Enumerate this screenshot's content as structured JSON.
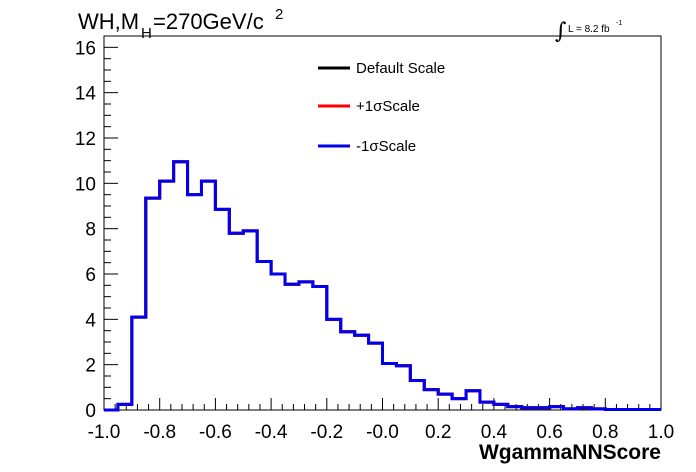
{
  "chart_data": {
    "type": "histogram",
    "title": {
      "main": "WH,M",
      "sub": "H",
      "rest": "=270GeV/c",
      "sup": "2"
    },
    "lumi": {
      "integral": "∫",
      "text": "L = 8.2 fb",
      "sup": "-1"
    },
    "xlabel": "WgammaNNScore",
    "ylabel": "",
    "xlim": [
      -1.0,
      1.0
    ],
    "ylim": [
      0,
      16.5
    ],
    "x_ticks": [
      "-1.0",
      "-0.8",
      "-0.6",
      "-0.4",
      "-0.2",
      "-0.0",
      "0.2",
      "0.4",
      "0.6",
      "0.8",
      "1.0"
    ],
    "y_ticks": [
      "0",
      "2",
      "4",
      "6",
      "8",
      "10",
      "12",
      "14",
      "16"
    ],
    "bin_edges_start": -1.0,
    "bin_width": 0.05,
    "series": [
      {
        "name": "Default Scale",
        "color": "#000000",
        "values": [
          0.0,
          0.25,
          4.1,
          9.35,
          10.1,
          10.95,
          9.5,
          10.1,
          8.85,
          7.8,
          7.9,
          6.55,
          6.0,
          5.55,
          5.65,
          5.45,
          4.0,
          3.45,
          3.3,
          2.95,
          2.05,
          1.95,
          1.3,
          0.9,
          0.7,
          0.5,
          0.85,
          0.35,
          0.25,
          0.15,
          0.1,
          0.1,
          0.15,
          0.05,
          0.1,
          0.05,
          0.02,
          0.02,
          0.02,
          0.02
        ]
      },
      {
        "name": "+1σScale",
        "color": "#ff0000",
        "values": [
          0.0,
          0.25,
          4.1,
          9.35,
          10.1,
          10.95,
          9.5,
          10.1,
          8.85,
          7.8,
          7.9,
          6.55,
          6.0,
          5.55,
          5.65,
          5.45,
          4.0,
          3.45,
          3.3,
          2.95,
          2.05,
          1.95,
          1.3,
          0.9,
          0.7,
          0.5,
          0.85,
          0.35,
          0.25,
          0.15,
          0.1,
          0.1,
          0.15,
          0.05,
          0.1,
          0.05,
          0.02,
          0.02,
          0.02,
          0.02
        ]
      },
      {
        "name": "-1σScale",
        "color": "#0000ee",
        "values": [
          0.0,
          0.25,
          4.1,
          9.35,
          10.1,
          10.95,
          9.5,
          10.1,
          8.85,
          7.8,
          7.9,
          6.55,
          6.0,
          5.55,
          5.65,
          5.45,
          4.0,
          3.45,
          3.3,
          2.95,
          2.05,
          1.95,
          1.3,
          0.9,
          0.7,
          0.5,
          0.85,
          0.35,
          0.25,
          0.15,
          0.1,
          0.1,
          0.15,
          0.05,
          0.1,
          0.05,
          0.02,
          0.02,
          0.02,
          0.02
        ]
      }
    ],
    "legend": {
      "placement": "top-center",
      "entries": [
        "Default Scale",
        "+1σScale",
        "-1σScale"
      ]
    },
    "grid": false
  }
}
